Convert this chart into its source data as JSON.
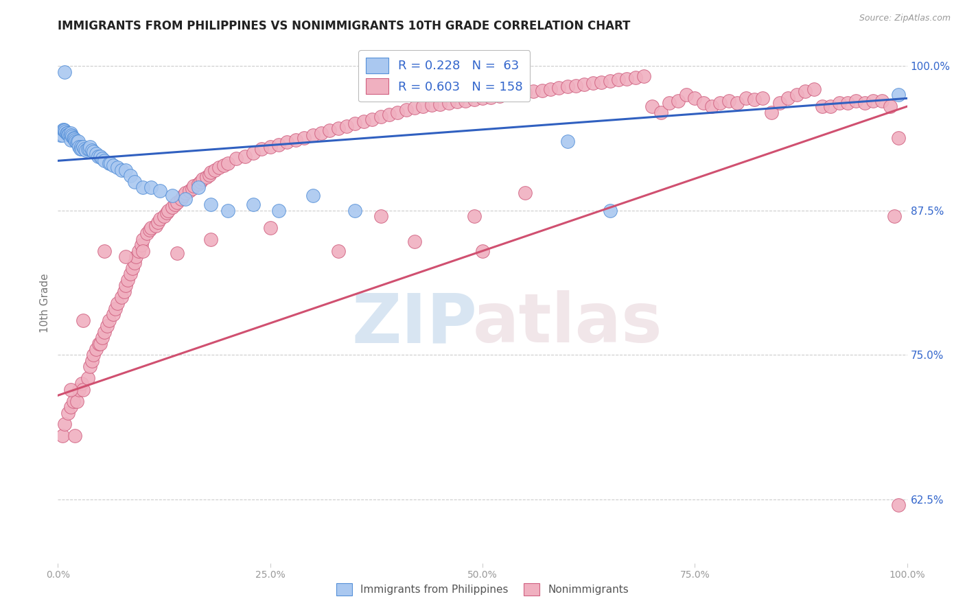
{
  "title": "IMMIGRANTS FROM PHILIPPINES VS NONIMMIGRANTS 10TH GRADE CORRELATION CHART",
  "source": "Source: ZipAtlas.com",
  "ylabel": "10th Grade",
  "right_yticks": [
    "62.5%",
    "75.0%",
    "87.5%",
    "100.0%"
  ],
  "right_ytick_vals": [
    0.625,
    0.75,
    0.875,
    1.0
  ],
  "legend_blue_r": "R = 0.228",
  "legend_blue_n": "N =  63",
  "legend_pink_r": "R = 0.603",
  "legend_pink_n": "N = 158",
  "blue_color": "#aac8f0",
  "pink_color": "#f0b0c0",
  "blue_edge_color": "#5590d8",
  "pink_edge_color": "#d06080",
  "blue_line_color": "#3060c0",
  "pink_line_color": "#d05070",
  "legend_text_color": "#3366cc",
  "grid_color": "#cccccc",
  "background_color": "#ffffff",
  "xlim": [
    0.0,
    1.0
  ],
  "ylim": [
    0.57,
    1.02
  ],
  "blue_trend_x0": 0.0,
  "blue_trend_y0": 0.918,
  "blue_trend_x1": 1.0,
  "blue_trend_y1": 0.972,
  "pink_trend_x0": 0.0,
  "pink_trend_y0": 0.715,
  "pink_trend_x1": 1.0,
  "pink_trend_y1": 0.965,
  "blue_scatter_x": [
    0.003,
    0.005,
    0.006,
    0.007,
    0.008,
    0.009,
    0.01,
    0.011,
    0.012,
    0.013,
    0.014,
    0.015,
    0.015,
    0.016,
    0.017,
    0.018,
    0.019,
    0.02,
    0.021,
    0.022,
    0.023,
    0.024,
    0.025,
    0.026,
    0.027,
    0.028,
    0.03,
    0.031,
    0.033,
    0.035,
    0.037,
    0.038,
    0.04,
    0.042,
    0.045,
    0.047,
    0.05,
    0.052,
    0.055,
    0.06,
    0.062,
    0.065,
    0.07,
    0.075,
    0.08,
    0.085,
    0.09,
    0.1,
    0.11,
    0.12,
    0.135,
    0.15,
    0.165,
    0.18,
    0.2,
    0.23,
    0.26,
    0.3,
    0.35,
    0.6,
    0.65,
    0.99,
    0.008
  ],
  "blue_scatter_y": [
    0.94,
    0.94,
    0.945,
    0.945,
    0.944,
    0.943,
    0.942,
    0.942,
    0.941,
    0.941,
    0.94,
    0.942,
    0.936,
    0.94,
    0.939,
    0.938,
    0.937,
    0.936,
    0.935,
    0.934,
    0.933,
    0.935,
    0.93,
    0.928,
    0.93,
    0.928,
    0.93,
    0.928,
    0.927,
    0.928,
    0.928,
    0.93,
    0.927,
    0.926,
    0.924,
    0.922,
    0.922,
    0.92,
    0.918,
    0.916,
    0.916,
    0.914,
    0.912,
    0.91,
    0.91,
    0.905,
    0.9,
    0.895,
    0.895,
    0.892,
    0.888,
    0.885,
    0.895,
    0.88,
    0.875,
    0.88,
    0.875,
    0.888,
    0.875,
    0.935,
    0.875,
    0.975,
    0.995
  ],
  "pink_scatter_x": [
    0.005,
    0.008,
    0.012,
    0.015,
    0.018,
    0.022,
    0.025,
    0.028,
    0.03,
    0.035,
    0.038,
    0.04,
    0.042,
    0.045,
    0.048,
    0.05,
    0.052,
    0.055,
    0.058,
    0.06,
    0.065,
    0.068,
    0.07,
    0.075,
    0.078,
    0.08,
    0.082,
    0.085,
    0.088,
    0.09,
    0.092,
    0.095,
    0.098,
    0.1,
    0.105,
    0.108,
    0.11,
    0.115,
    0.118,
    0.12,
    0.125,
    0.128,
    0.13,
    0.135,
    0.138,
    0.14,
    0.145,
    0.148,
    0.15,
    0.155,
    0.158,
    0.16,
    0.165,
    0.168,
    0.17,
    0.175,
    0.178,
    0.18,
    0.185,
    0.19,
    0.195,
    0.2,
    0.21,
    0.22,
    0.23,
    0.24,
    0.25,
    0.26,
    0.27,
    0.28,
    0.29,
    0.3,
    0.31,
    0.32,
    0.33,
    0.34,
    0.35,
    0.36,
    0.37,
    0.38,
    0.39,
    0.4,
    0.41,
    0.42,
    0.43,
    0.44,
    0.45,
    0.46,
    0.47,
    0.48,
    0.49,
    0.5,
    0.51,
    0.52,
    0.53,
    0.54,
    0.55,
    0.56,
    0.57,
    0.58,
    0.59,
    0.6,
    0.61,
    0.62,
    0.63,
    0.64,
    0.65,
    0.66,
    0.67,
    0.68,
    0.69,
    0.7,
    0.71,
    0.72,
    0.73,
    0.74,
    0.75,
    0.76,
    0.77,
    0.78,
    0.79,
    0.8,
    0.81,
    0.82,
    0.83,
    0.84,
    0.85,
    0.86,
    0.87,
    0.88,
    0.89,
    0.9,
    0.91,
    0.92,
    0.93,
    0.94,
    0.95,
    0.96,
    0.97,
    0.98,
    0.985,
    0.99,
    0.015,
    0.02,
    0.03,
    0.055,
    0.08,
    0.1,
    0.14,
    0.18,
    0.25,
    0.33,
    0.49,
    0.5,
    0.55,
    0.99,
    0.38,
    0.42
  ],
  "pink_scatter_y": [
    0.68,
    0.69,
    0.7,
    0.705,
    0.71,
    0.71,
    0.72,
    0.725,
    0.72,
    0.73,
    0.74,
    0.745,
    0.75,
    0.755,
    0.76,
    0.76,
    0.765,
    0.77,
    0.775,
    0.78,
    0.785,
    0.79,
    0.795,
    0.8,
    0.805,
    0.81,
    0.815,
    0.82,
    0.825,
    0.83,
    0.835,
    0.84,
    0.845,
    0.85,
    0.855,
    0.858,
    0.86,
    0.862,
    0.865,
    0.868,
    0.87,
    0.873,
    0.875,
    0.878,
    0.88,
    0.882,
    0.885,
    0.888,
    0.89,
    0.892,
    0.894,
    0.896,
    0.898,
    0.9,
    0.902,
    0.904,
    0.906,
    0.908,
    0.91,
    0.912,
    0.914,
    0.916,
    0.92,
    0.922,
    0.925,
    0.928,
    0.93,
    0.932,
    0.934,
    0.936,
    0.938,
    0.94,
    0.942,
    0.944,
    0.946,
    0.948,
    0.95,
    0.952,
    0.954,
    0.956,
    0.958,
    0.96,
    0.962,
    0.964,
    0.965,
    0.966,
    0.967,
    0.968,
    0.969,
    0.97,
    0.971,
    0.972,
    0.973,
    0.974,
    0.975,
    0.976,
    0.977,
    0.978,
    0.979,
    0.98,
    0.981,
    0.982,
    0.983,
    0.984,
    0.985,
    0.986,
    0.987,
    0.988,
    0.989,
    0.99,
    0.991,
    0.965,
    0.96,
    0.968,
    0.97,
    0.975,
    0.972,
    0.968,
    0.965,
    0.968,
    0.97,
    0.968,
    0.972,
    0.971,
    0.972,
    0.96,
    0.968,
    0.972,
    0.975,
    0.978,
    0.98,
    0.965,
    0.965,
    0.968,
    0.968,
    0.97,
    0.968,
    0.97,
    0.97,
    0.965,
    0.87,
    0.62,
    0.72,
    0.68,
    0.78,
    0.84,
    0.835,
    0.84,
    0.838,
    0.85,
    0.86,
    0.84,
    0.87,
    0.84,
    0.89,
    0.938,
    0.87,
    0.848
  ]
}
